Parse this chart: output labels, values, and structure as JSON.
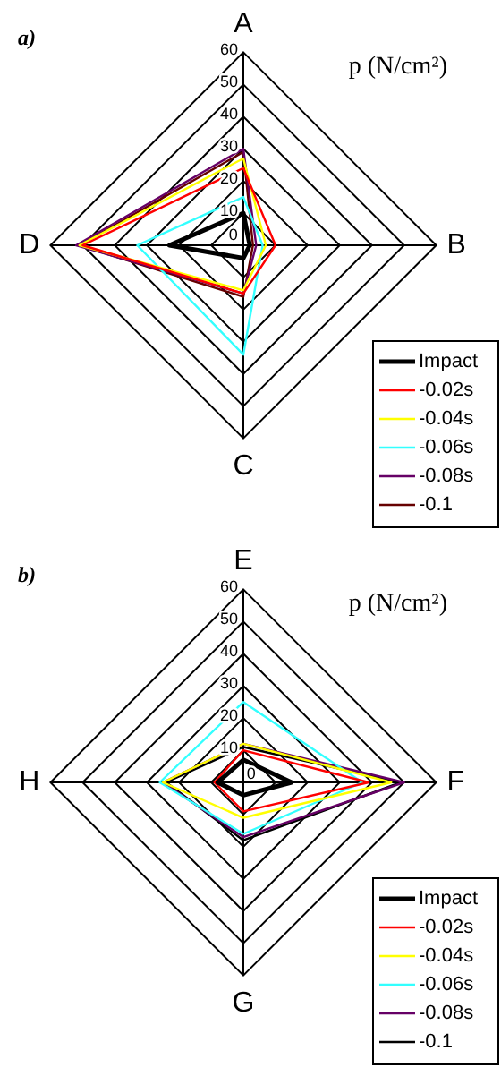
{
  "chart_data": [
    {
      "type": "radar",
      "title": "a)",
      "annotations": [
        "p (N/cm²)"
      ],
      "categories": [
        "A",
        "B",
        "C",
        "D"
      ],
      "ylim": [
        0,
        60
      ],
      "yticks": [
        0,
        10,
        20,
        30,
        40,
        50,
        60
      ],
      "grid": true,
      "legend": "bottom right",
      "marker": "none",
      "series": [
        {
          "name": "Impact",
          "color": "#000000",
          "values": [
            10,
            2,
            4,
            23
          ]
        },
        {
          "name": "-0.02s",
          "color": "#ff0000",
          "values": [
            24,
            10,
            15,
            50
          ]
        },
        {
          "name": "-0.04s",
          "color": "#ffff00",
          "values": [
            27,
            7,
            14,
            51
          ]
        },
        {
          "name": "-0.06s",
          "color": "#33ffff",
          "values": [
            15,
            6,
            34,
            33
          ]
        },
        {
          "name": "-0.08s",
          "color": "#660066",
          "values": [
            30,
            4,
            15,
            52
          ]
        },
        {
          "name": "-0.1",
          "color": "#660000",
          "values": [
            29,
            3,
            16,
            51
          ]
        }
      ]
    },
    {
      "type": "radar",
      "title": "b)",
      "annotations": [
        "p (N/cm²)"
      ],
      "categories": [
        "E",
        "F",
        "G",
        "H"
      ],
      "ylim": [
        0,
        60
      ],
      "yticks": [
        0,
        10,
        20,
        30,
        40,
        50,
        60
      ],
      "grid": true,
      "legend": "bottom right",
      "marker": "none",
      "series": [
        {
          "name": "Impact",
          "color": "#000000",
          "values": [
            7,
            15,
            4,
            8
          ]
        },
        {
          "name": "-0.02s",
          "color": "#ff0000",
          "values": [
            10,
            39,
            9,
            9
          ]
        },
        {
          "name": "-0.04s",
          "color": "#ffff00",
          "values": [
            12,
            46,
            11,
            25
          ]
        },
        {
          "name": "-0.06s",
          "color": "#33ffff",
          "values": [
            25,
            37,
            16,
            26
          ]
        },
        {
          "name": "-0.08s",
          "color": "#660066",
          "values": [
            12,
            50,
            17,
            25
          ]
        },
        {
          "name": "-0.1",
          "color": "#000000",
          "values": [
            11,
            49,
            18,
            24
          ]
        }
      ]
    }
  ]
}
